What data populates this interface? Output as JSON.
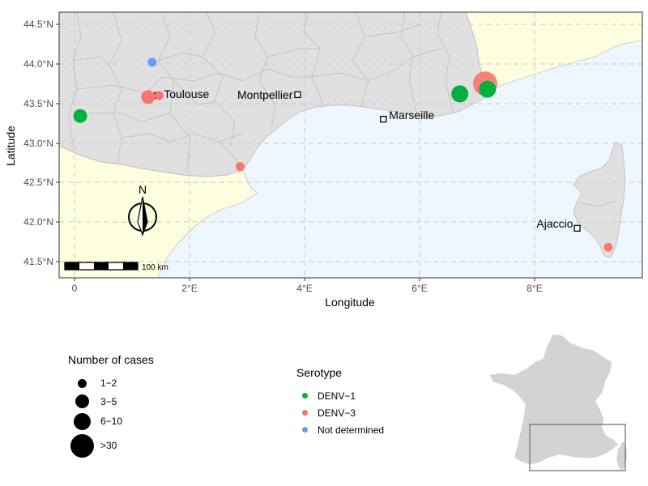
{
  "map": {
    "xlabel": "Longitude",
    "ylabel": "Latitude",
    "x_ticks": [
      "0",
      "2°E",
      "4°E",
      "6°E",
      "8°E"
    ],
    "y_ticks": [
      "44.5°N",
      "44.0°N",
      "43.5°N",
      "43.0°N",
      "42.5°N",
      "42.0°N",
      "41.5°N"
    ],
    "north_label": "N",
    "scale_label": "100 km",
    "colors": {
      "land": "#e0e0e0",
      "outside_land": "#fdfde0",
      "sea": "#eef6ff",
      "grid": "#c8c8c8",
      "border": "#b3b3b3"
    },
    "cities": [
      {
        "name": "Toulouse",
        "lon": 1.44,
        "lat": 43.6
      },
      {
        "name": "Montpellier",
        "lon": 3.88,
        "lat": 43.61
      },
      {
        "name": "Marseille",
        "lon": 5.37,
        "lat": 43.3
      },
      {
        "name": "Ajaccio",
        "lon": 8.74,
        "lat": 41.92
      }
    ],
    "cases": [
      {
        "lon": 1.35,
        "lat": 44.02,
        "serotype": "Not determined",
        "size": "1-2"
      },
      {
        "lon": 1.28,
        "lat": 43.58,
        "serotype": "DENV-3",
        "size": "3-5"
      },
      {
        "lon": 1.47,
        "lat": 43.6,
        "serotype": "DENV-3",
        "size": "1-2"
      },
      {
        "lon": 0.1,
        "lat": 43.34,
        "serotype": "DENV-1",
        "size": "3-5"
      },
      {
        "lon": 2.88,
        "lat": 42.7,
        "serotype": "DENV-3",
        "size": "1-2"
      },
      {
        "lon": 6.7,
        "lat": 43.62,
        "serotype": "DENV-1",
        "size": "6-10"
      },
      {
        "lon": 7.14,
        "lat": 43.75,
        "serotype": "DENV-3",
        "size": ">30"
      },
      {
        "lon": 7.18,
        "lat": 43.68,
        "serotype": "DENV-1",
        "size": "6-10"
      },
      {
        "lon": 9.28,
        "lat": 41.68,
        "serotype": "DENV-3",
        "size": "1-2"
      }
    ]
  },
  "size_legend": {
    "title": "Number of cases",
    "items": [
      "1−2",
      "3−5",
      "6−10",
      ">30"
    ]
  },
  "serotype_legend": {
    "title": "Serotype",
    "items": [
      {
        "label": "DENV−1",
        "color": "#00b140"
      },
      {
        "label": "DENV−3",
        "color": "#f8766d"
      },
      {
        "label": "Not determined",
        "color": "#619cff"
      }
    ]
  },
  "inset": {
    "land_color": "#d3d3d3"
  }
}
